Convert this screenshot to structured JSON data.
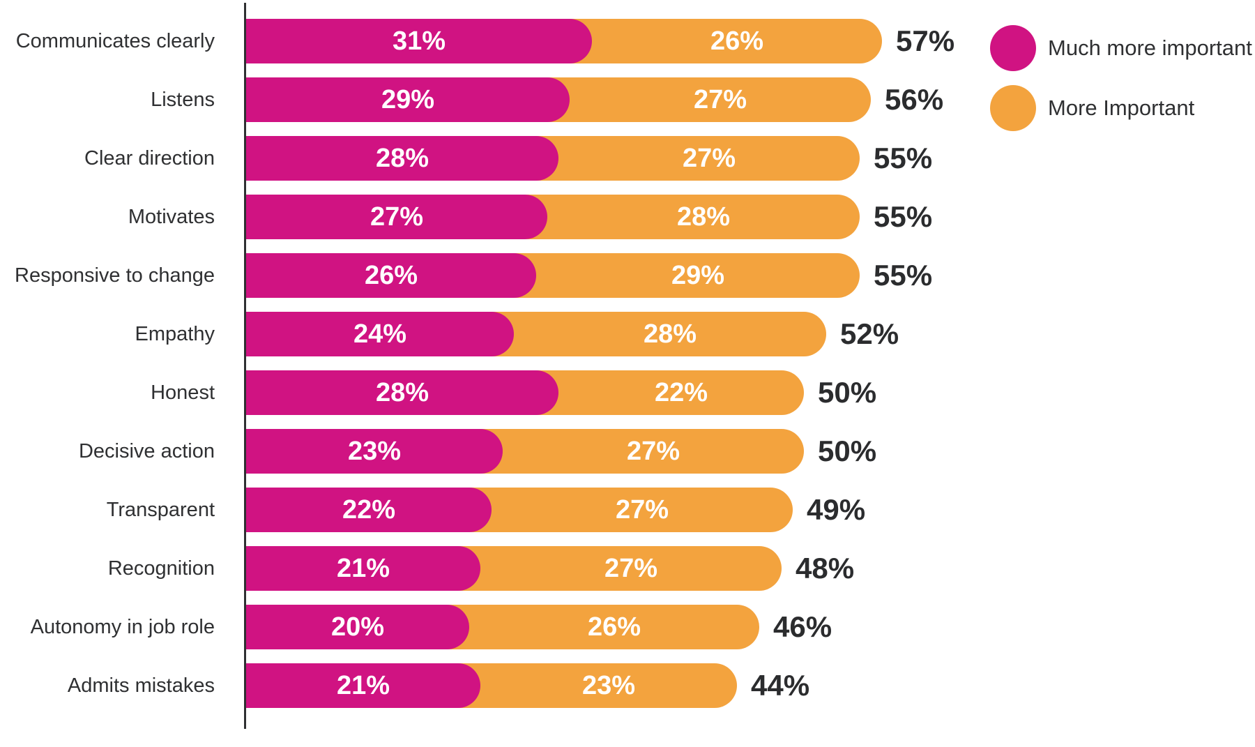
{
  "chart_data": {
    "type": "bar",
    "orientation": "horizontal",
    "stacked": true,
    "title": "",
    "categories": [
      "Communicates clearly",
      "Listens",
      "Clear direction",
      "Motivates",
      "Responsive to change",
      "Empathy",
      "Honest",
      "Decisive action",
      "Transparent",
      "Recognition",
      "Autonomy in job role",
      "Admits mistakes"
    ],
    "series": [
      {
        "name": "Much more important",
        "color": "#D01382",
        "values": [
          31,
          29,
          28,
          27,
          26,
          24,
          28,
          23,
          22,
          21,
          20,
          21
        ]
      },
      {
        "name": "More Important",
        "color": "#F3A33E",
        "values": [
          26,
          27,
          27,
          28,
          29,
          28,
          22,
          27,
          27,
          27,
          26,
          23
        ]
      }
    ],
    "totals": [
      57,
      56,
      55,
      55,
      55,
      52,
      50,
      50,
      49,
      48,
      46,
      44
    ],
    "value_suffix": "%",
    "xlim": [
      0,
      60
    ],
    "grid": false,
    "legend_position": "top-right",
    "axis_line": true
  },
  "colors": {
    "background": "#FFFFFF",
    "axis_line": "#2F3032",
    "category_text": "#2F3032",
    "bar_value_text": "#FFFFFF",
    "total_text": "#2B2C2E"
  }
}
